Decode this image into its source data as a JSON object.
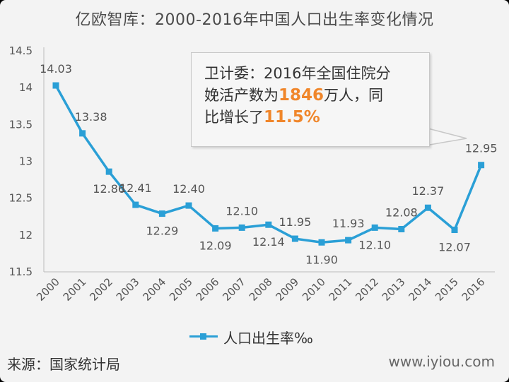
{
  "title": "亿欧智库：2000-2016年中国人口出生率变化情况",
  "callout": {
    "line1": "卫计委：2016年全国住院分",
    "line2_pre": "娩活产数为",
    "line2_hl": "1846",
    "line2_post": "万人，同",
    "line3_pre": "比增长了",
    "line3_hl": "11.5%"
  },
  "legend_label": "人口出生率‰",
  "source": "来源：国家统计局",
  "watermark": "www.iyiou.com",
  "colors": {
    "series": "#2a9fd6",
    "highlight": "#f0862a"
  },
  "chart_data": {
    "type": "line",
    "title": "亿欧智库：2000-2016年中国人口出生率变化情况",
    "x": [
      "2000",
      "2001",
      "2002",
      "2003",
      "2004",
      "2005",
      "2006",
      "2007",
      "2008",
      "2009",
      "2010",
      "2011",
      "2012",
      "2013",
      "2014",
      "2015",
      "2016"
    ],
    "series": [
      {
        "name": "人口出生率‰",
        "values": [
          14.03,
          13.38,
          12.86,
          12.41,
          12.29,
          12.4,
          12.09,
          12.1,
          12.14,
          11.95,
          11.9,
          11.93,
          12.1,
          12.08,
          12.37,
          12.07,
          12.95
        ]
      }
    ],
    "data_labels": [
      "14.03",
      "13.38",
      "12.86",
      "12.41",
      "12.29",
      "12.40",
      "12.09",
      "12.10",
      "12.14",
      "11.95",
      "11.90",
      "11.93",
      "12.10",
      "12.08",
      "12.37",
      "12.07",
      "12.95"
    ],
    "yticks": [
      "11.5",
      "12",
      "12.5",
      "13",
      "13.5",
      "14",
      "14.5"
    ],
    "ylim": [
      11.5,
      14.5
    ],
    "grid": false,
    "legend": "bottom"
  }
}
